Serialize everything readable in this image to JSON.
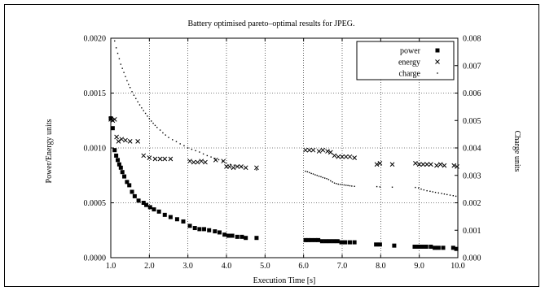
{
  "chart_data": {
    "type": "scatter",
    "title": "Battery optimised pareto–optimal results for JPEG.",
    "xlabel": "Execution Time [s]",
    "ylabel": "Power/Energy units",
    "y2label": "Charge units",
    "xlim": [
      1.0,
      10.0
    ],
    "ylim": [
      0,
      0.002
    ],
    "y2lim": [
      0,
      0.008
    ],
    "x_ticks": [
      1.0,
      2.0,
      3.0,
      4.0,
      5.0,
      6.0,
      7.0,
      8.0,
      9.0,
      10.0
    ],
    "x_tick_labels": [
      "1.0",
      "2.0",
      "3.0",
      "4.0",
      "5.0",
      "6.0",
      "7.0",
      "8.0",
      "9.0",
      "10.0"
    ],
    "y_ticks": [
      0,
      0.0005,
      0.001,
      0.0015,
      0.002
    ],
    "y_tick_labels": [
      "0.0000",
      "0.0005",
      "0.0010",
      "0.0015",
      "0.0020"
    ],
    "y2_ticks": [
      0,
      0.001,
      0.002,
      0.003,
      0.004,
      0.005,
      0.006,
      0.007,
      0.008
    ],
    "y2_tick_labels": [
      "0.000",
      "0.001",
      "0.002",
      "0.003",
      "0.004",
      "0.005",
      "0.006",
      "0.007",
      "0.008"
    ],
    "grid": true,
    "legend_position": "top-right",
    "series": [
      {
        "name": "power",
        "marker": "filled-square",
        "axis": "left",
        "color": "#000000",
        "x": [
          1.0,
          1.05,
          1.1,
          1.14,
          1.18,
          1.22,
          1.26,
          1.3,
          1.35,
          1.42,
          1.48,
          1.55,
          1.62,
          1.72,
          1.85,
          1.92,
          2.02,
          2.12,
          2.25,
          2.4,
          2.55,
          2.72,
          2.88,
          3.05,
          3.18,
          3.3,
          3.42,
          3.55,
          3.7,
          3.82,
          3.95,
          4.05,
          4.15,
          4.28,
          4.4,
          4.5,
          4.78,
          6.05,
          6.12,
          6.2,
          6.3,
          6.38,
          6.48,
          6.58,
          6.68,
          6.78,
          6.88,
          6.98,
          7.08,
          7.2,
          7.32,
          7.88,
          7.98,
          8.35,
          8.88,
          8.98,
          9.08,
          9.18,
          9.3,
          9.4,
          9.5,
          9.62,
          9.88,
          9.96
        ],
        "y": [
          0.00127,
          0.00118,
          0.00098,
          0.00093,
          0.00089,
          0.00085,
          0.00082,
          0.00078,
          0.00074,
          0.00069,
          0.00066,
          0.0006,
          0.00056,
          0.00052,
          0.0005,
          0.00048,
          0.00046,
          0.00044,
          0.00042,
          0.00039,
          0.00037,
          0.00035,
          0.00033,
          0.00029,
          0.00027,
          0.00026,
          0.00026,
          0.00025,
          0.00024,
          0.00023,
          0.00021,
          0.0002,
          0.0002,
          0.00019,
          0.00019,
          0.00018,
          0.00018,
          0.00016,
          0.00016,
          0.00016,
          0.00016,
          0.00016,
          0.00015,
          0.00015,
          0.00015,
          0.00015,
          0.00015,
          0.00014,
          0.00014,
          0.00014,
          0.00014,
          0.00012,
          0.00012,
          0.00011,
          0.0001,
          0.0001,
          0.0001,
          0.0001,
          0.0001,
          9e-05,
          9e-05,
          9e-05,
          9e-05,
          8e-05
        ]
      },
      {
        "name": "energy",
        "marker": "cross",
        "axis": "left",
        "color": "#000000",
        "x": [
          1.0,
          1.05,
          1.1,
          1.15,
          1.2,
          1.28,
          1.38,
          1.5,
          1.7,
          1.85,
          2.0,
          2.15,
          2.28,
          2.4,
          2.55,
          3.05,
          3.15,
          3.25,
          3.35,
          3.45,
          3.72,
          3.92,
          4.0,
          4.08,
          4.18,
          4.28,
          4.38,
          4.5,
          4.78,
          6.05,
          6.15,
          6.25,
          6.4,
          6.5,
          6.62,
          6.7,
          6.8,
          6.9,
          7.0,
          7.1,
          7.2,
          7.32,
          7.9,
          7.98,
          8.3,
          8.9,
          9.0,
          9.1,
          9.2,
          9.3,
          9.45,
          9.55,
          9.65,
          9.9,
          9.98
        ],
        "y": [
          0.00126,
          0.00125,
          0.00126,
          0.0011,
          0.00106,
          0.00108,
          0.00107,
          0.00106,
          0.00106,
          0.00093,
          0.00091,
          0.0009,
          0.0009,
          0.0009,
          0.0009,
          0.00088,
          0.00087,
          0.00087,
          0.00088,
          0.00087,
          0.00089,
          0.00088,
          0.00083,
          0.00083,
          0.00082,
          0.00083,
          0.00083,
          0.00082,
          0.00082,
          0.00098,
          0.00098,
          0.00098,
          0.00097,
          0.00098,
          0.00097,
          0.00096,
          0.00093,
          0.00092,
          0.00092,
          0.00092,
          0.00092,
          0.00091,
          0.00085,
          0.00086,
          0.00085,
          0.00086,
          0.00085,
          0.00085,
          0.00085,
          0.00085,
          0.00084,
          0.00085,
          0.00084,
          0.00084,
          0.00083
        ]
      },
      {
        "name": "charge",
        "marker": "dot",
        "axis": "right",
        "color": "#000000",
        "x": [
          1.1,
          1.14,
          1.18,
          1.22,
          1.26,
          1.3,
          1.34,
          1.38,
          1.42,
          1.46,
          1.5,
          1.55,
          1.6,
          1.65,
          1.7,
          1.75,
          1.8,
          1.85,
          1.9,
          1.95,
          2.0,
          2.05,
          2.1,
          2.15,
          2.2,
          2.28,
          2.35,
          2.42,
          2.5,
          2.6,
          2.7,
          2.8,
          2.9,
          3.0,
          3.1,
          3.2,
          3.3,
          3.4,
          3.5,
          3.6,
          3.7,
          3.8,
          3.9,
          4.0,
          4.1,
          4.2,
          4.3,
          4.4,
          4.5,
          4.78,
          6.05,
          6.1,
          6.15,
          6.2,
          6.25,
          6.3,
          6.35,
          6.4,
          6.45,
          6.5,
          6.55,
          6.6,
          6.65,
          6.7,
          6.75,
          6.8,
          6.85,
          6.9,
          6.95,
          7.0,
          7.05,
          7.1,
          7.15,
          7.2,
          7.25,
          7.32,
          7.9,
          7.98,
          8.3,
          8.9,
          8.98,
          9.05,
          9.12,
          9.2,
          9.28,
          9.35,
          9.42,
          9.5,
          9.58,
          9.65,
          9.72,
          9.8,
          9.88,
          9.95
        ],
        "y": [
          0.0079,
          0.00765,
          0.00745,
          0.00725,
          0.00705,
          0.0069,
          0.00675,
          0.0066,
          0.00645,
          0.00632,
          0.0062,
          0.00605,
          0.00592,
          0.0058,
          0.00568,
          0.00557,
          0.00546,
          0.00536,
          0.00526,
          0.00516,
          0.00507,
          0.00498,
          0.0049,
          0.00482,
          0.00475,
          0.00465,
          0.00455,
          0.00447,
          0.00438,
          0.0043,
          0.00423,
          0.00415,
          0.00408,
          0.004,
          0.00395,
          0.0039,
          0.00385,
          0.00378,
          0.00372,
          0.00367,
          0.00362,
          0.00357,
          0.00352,
          0.00345,
          0.0034,
          0.00337,
          0.00334,
          0.0033,
          0.00327,
          0.0032,
          0.00315,
          0.00313,
          0.0031,
          0.00307,
          0.00305,
          0.00302,
          0.003,
          0.00297,
          0.00295,
          0.00292,
          0.0029,
          0.00288,
          0.00285,
          0.0028,
          0.00276,
          0.00272,
          0.0027,
          0.00268,
          0.00267,
          0.00266,
          0.00265,
          0.00264,
          0.00263,
          0.00262,
          0.00261,
          0.0026,
          0.00259,
          0.00258,
          0.00257,
          0.00256,
          0.00254,
          0.0025,
          0.00247,
          0.00244,
          0.00242,
          0.0024,
          0.00238,
          0.00236,
          0.00234,
          0.00232,
          0.0023,
          0.00228,
          0.00226,
          0.00224
        ]
      }
    ]
  }
}
